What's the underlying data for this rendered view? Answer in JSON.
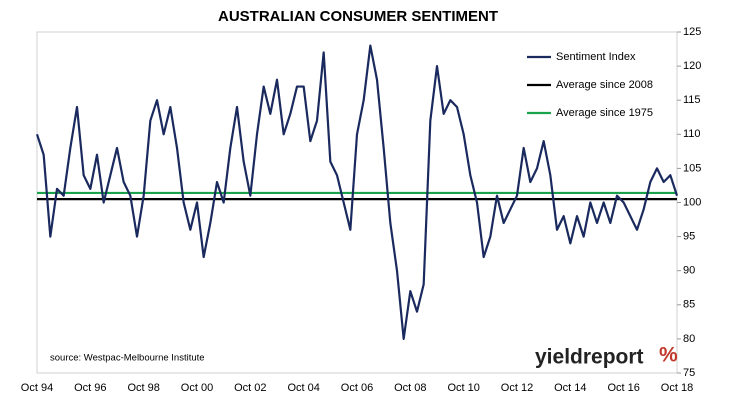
{
  "chart_data": {
    "type": "line",
    "title": "AUSTRALIAN CONSUMER SENTIMENT",
    "source": "source: Westpac-Melbourne Institute",
    "logo_text": "yieldreport",
    "logo_symbol": "%",
    "categories": [
      "Oct 94",
      null,
      null,
      null,
      null,
      null,
      null,
      null,
      "Oct 96",
      null,
      null,
      null,
      null,
      null,
      null,
      null,
      "Oct 98",
      null,
      null,
      null,
      null,
      null,
      null,
      null,
      "Oct 00",
      null,
      null,
      null,
      null,
      null,
      null,
      null,
      "Oct 02",
      null,
      null,
      null,
      null,
      null,
      null,
      null,
      "Oct 04",
      null,
      null,
      null,
      null,
      null,
      null,
      null,
      "Oct 06",
      null,
      null,
      null,
      null,
      null,
      null,
      null,
      "Oct 08",
      null,
      null,
      null,
      null,
      null,
      null,
      null,
      "Oct 10",
      null,
      null,
      null,
      null,
      null,
      null,
      null,
      "Oct 12",
      null,
      null,
      null,
      null,
      null,
      null,
      null,
      "Oct 14",
      null,
      null,
      null,
      null,
      null,
      null,
      null,
      "Oct 16",
      null,
      null,
      null,
      null,
      null,
      null,
      null,
      "Oct 18"
    ],
    "series": [
      {
        "name": "Sentiment Index",
        "color": "#1a2a5e",
        "values": [
          110,
          107,
          95,
          102,
          101,
          108,
          114,
          104,
          102,
          107,
          100,
          104,
          108,
          103,
          101,
          95,
          101,
          112,
          115,
          110,
          114,
          108,
          100,
          96,
          100,
          92,
          97,
          103,
          100,
          108,
          114,
          106,
          101,
          110,
          117,
          113,
          118,
          110,
          113,
          117,
          117,
          109,
          112,
          122,
          106,
          104,
          100,
          96,
          110,
          115,
          123,
          118,
          108,
          97,
          90,
          80,
          87,
          84,
          88,
          112,
          120,
          113,
          115,
          114,
          110,
          104,
          100,
          92,
          95,
          101,
          97,
          99,
          101,
          108,
          103,
          105,
          109,
          104,
          96,
          98,
          94,
          98,
          95,
          100,
          97,
          100,
          97,
          101,
          100,
          98,
          96,
          99,
          103,
          105,
          103,
          104,
          101
        ]
      }
    ],
    "reference_lines": [
      {
        "name": "Average since 2008",
        "color": "#000000",
        "value": 100.5
      },
      {
        "name": "Average since 1975",
        "color": "#1aa34a",
        "value": 101.4
      }
    ],
    "ylim": [
      75,
      125
    ],
    "yticks": [
      75,
      80,
      85,
      90,
      95,
      100,
      105,
      110,
      115,
      120,
      125
    ],
    "y_axis_side": "right",
    "grid": false
  }
}
